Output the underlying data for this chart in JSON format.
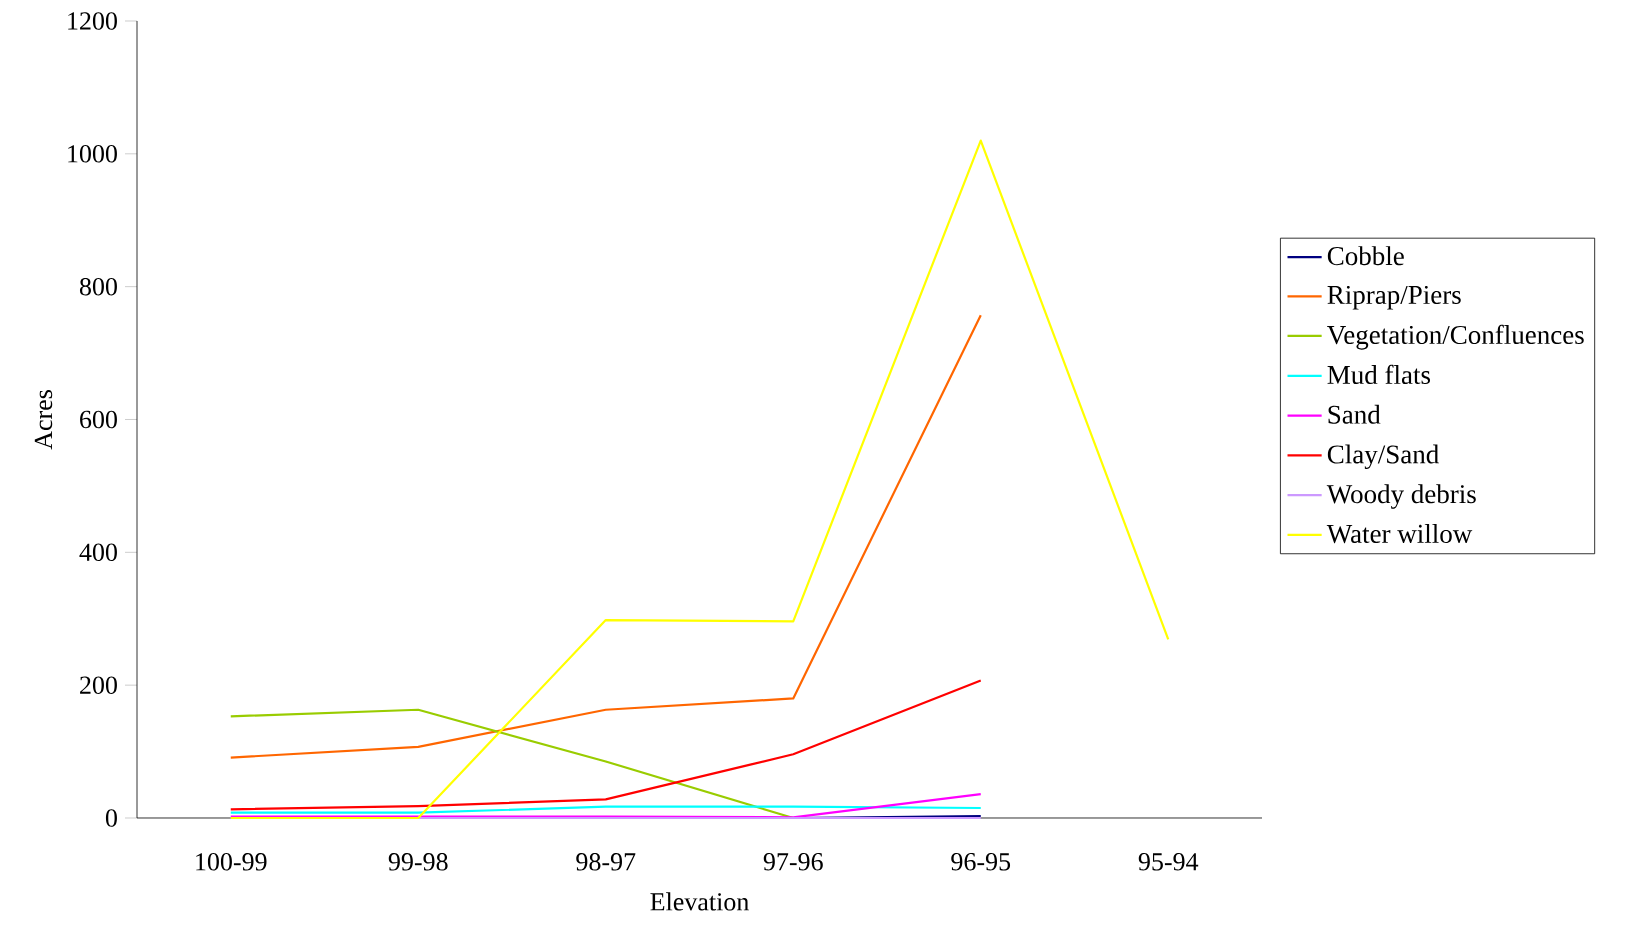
{
  "chart_data": {
    "type": "line",
    "xlabel": "Elevation",
    "ylabel": "Acres",
    "categories": [
      "100-99",
      "99-98",
      "98-97",
      "97-96",
      "96-95",
      "95-94"
    ],
    "ylim": [
      0,
      1200
    ],
    "yticks": [
      0,
      200,
      400,
      600,
      800,
      1000,
      1200
    ],
    "legend": "right",
    "marker": "none",
    "line_style": "solid",
    "series": [
      {
        "name": "Cobble",
        "color": "#000080",
        "values": [
          null,
          null,
          null,
          0,
          3,
          null
        ]
      },
      {
        "name": "Riprap/Piers",
        "color": "#ff6600",
        "values": [
          91,
          107,
          163,
          180,
          757,
          null
        ]
      },
      {
        "name": "Vegetation/Confluences",
        "color": "#99cc00",
        "values": [
          153,
          163,
          85,
          0,
          null,
          null
        ]
      },
      {
        "name": "Mud flats",
        "color": "#00ffff",
        "values": [
          8,
          8,
          17,
          17,
          15,
          null
        ]
      },
      {
        "name": "Sand",
        "color": "#ff00ff",
        "values": [
          2,
          2,
          2,
          1,
          36,
          null
        ]
      },
      {
        "name": "Clay/Sand",
        "color": "#ff0000",
        "values": [
          13,
          18,
          28,
          96,
          207,
          null
        ]
      },
      {
        "name": "Woody debris",
        "color": "#cc99ff",
        "values": [
          0,
          0,
          0,
          0,
          0,
          null
        ]
      },
      {
        "name": "Water willow",
        "color": "#ffff00",
        "values": [
          0,
          0,
          298,
          296,
          1020,
          269
        ]
      }
    ]
  }
}
